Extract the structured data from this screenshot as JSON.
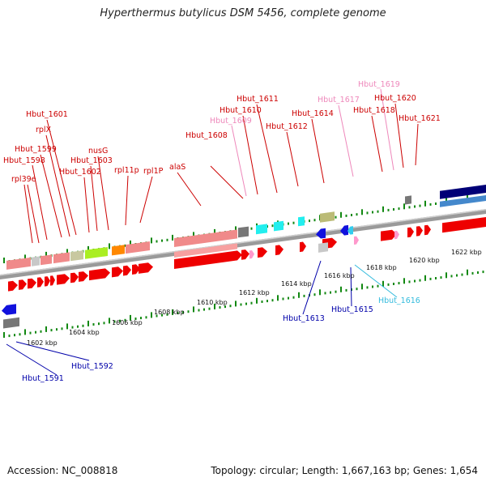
{
  "title": "Hyperthermus butylicus DSM 5456, complete genome",
  "footer": {
    "accession": "Accession: NC_008818",
    "summary": "Topology: circular; Length: 1,667,163 bp; Genes: 1,654"
  },
  "colors": {
    "label_red": "#cc0000",
    "label_pink": "#ee88bb",
    "label_blue": "#0000aa",
    "label_cyan": "#33bbdd",
    "tick_green": "#118811",
    "backbone": "#8a8a8a"
  },
  "ruler_labels": [
    "1602 kbp",
    "1604 kbp",
    "1606 kbp",
    "1608 kbp",
    "1610 kbp",
    "1612 kbp",
    "1614 kbp",
    "1616 kbp",
    "1618 kbp",
    "1620 kbp",
    "1622 kbp"
  ],
  "forward_labels": [
    {
      "text": "Hbut_1601",
      "color": "red"
    },
    {
      "text": "rplX",
      "color": "red"
    },
    {
      "text": "Hbut_1599",
      "color": "red"
    },
    {
      "text": "Hbut_1598",
      "color": "red"
    },
    {
      "text": "rpl39e",
      "color": "red"
    },
    {
      "text": "nusG",
      "color": "red"
    },
    {
      "text": "Hbut_1603",
      "color": "red"
    },
    {
      "text": "Hbut_1602",
      "color": "red"
    },
    {
      "text": "rpl11p",
      "color": "red"
    },
    {
      "text": "rpl1P",
      "color": "red"
    },
    {
      "text": "alaS",
      "color": "red"
    },
    {
      "text": "Hbut_1608",
      "color": "red"
    },
    {
      "text": "Hbut_1609",
      "color": "pink"
    },
    {
      "text": "Hbut_1610",
      "color": "red"
    },
    {
      "text": "Hbut_1611",
      "color": "red"
    },
    {
      "text": "Hbut_1612",
      "color": "red"
    },
    {
      "text": "Hbut_1614",
      "color": "red"
    },
    {
      "text": "Hbut_1617",
      "color": "pink"
    },
    {
      "text": "Hbut_1618",
      "color": "red"
    },
    {
      "text": "Hbut_1619",
      "color": "pink"
    },
    {
      "text": "Hbut_1620",
      "color": "red"
    },
    {
      "text": "Hbut_1621",
      "color": "red"
    }
  ],
  "reverse_labels": [
    {
      "text": "Hbut_1591",
      "color": "blue"
    },
    {
      "text": "Hbut_1592",
      "color": "blue"
    },
    {
      "text": "Hbut_1613",
      "color": "blue"
    },
    {
      "text": "Hbut_1615",
      "color": "blue"
    },
    {
      "text": "Hbut_1616",
      "color": "cyan"
    }
  ]
}
